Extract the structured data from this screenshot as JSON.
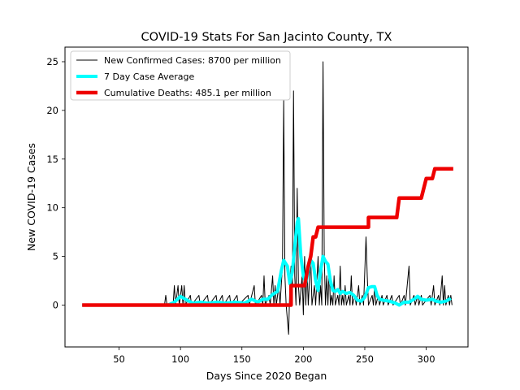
{
  "chart_data": {
    "type": "line",
    "title": "COVID-19 Stats For San Jacinto County, TX",
    "xlabel": "Days Since 2020 Began",
    "ylabel": "New COVID-19 Cases",
    "xlim": [
      6,
      334
    ],
    "ylim": [
      -4.3,
      26.5
    ],
    "xticks": [
      50,
      100,
      150,
      200,
      250,
      300
    ],
    "yticks": [
      0,
      5,
      10,
      15,
      20,
      25
    ],
    "grid": false,
    "legend_position": "top-left",
    "series": [
      {
        "name": "New Confirmed Cases: 8700 per million",
        "color": "#000000",
        "points": [
          [
            20,
            0
          ],
          [
            87,
            0
          ],
          [
            88,
            1
          ],
          [
            89,
            0
          ],
          [
            94,
            0
          ],
          [
            95,
            2
          ],
          [
            96,
            0
          ],
          [
            98,
            2
          ],
          [
            99,
            0
          ],
          [
            101,
            2
          ],
          [
            102,
            0
          ],
          [
            103,
            2
          ],
          [
            104,
            0
          ],
          [
            108,
            1
          ],
          [
            109,
            0
          ],
          [
            115,
            1
          ],
          [
            116,
            0
          ],
          [
            122,
            1
          ],
          [
            123,
            0
          ],
          [
            129,
            1
          ],
          [
            130,
            0
          ],
          [
            134,
            1
          ],
          [
            135,
            0
          ],
          [
            140,
            1
          ],
          [
            141,
            0
          ],
          [
            146,
            1
          ],
          [
            147,
            0
          ],
          [
            155,
            1
          ],
          [
            156,
            0
          ],
          [
            160,
            2
          ],
          [
            161,
            0
          ],
          [
            166,
            1
          ],
          [
            167,
            0
          ],
          [
            168,
            3
          ],
          [
            169,
            0
          ],
          [
            172,
            1
          ],
          [
            173,
            0
          ],
          [
            175,
            3
          ],
          [
            176,
            0
          ],
          [
            177,
            2
          ],
          [
            178,
            0
          ],
          [
            180,
            2
          ],
          [
            181,
            0
          ],
          [
            183,
            4
          ],
          [
            184,
            21
          ],
          [
            185,
            3
          ],
          [
            186,
            0
          ],
          [
            188,
            -3
          ],
          [
            189,
            2
          ],
          [
            190,
            4
          ],
          [
            191,
            0
          ],
          [
            192,
            22
          ],
          [
            193,
            3
          ],
          [
            194,
            0
          ],
          [
            195,
            12
          ],
          [
            196,
            2
          ],
          [
            197,
            0
          ],
          [
            199,
            3
          ],
          [
            200,
            -1
          ],
          [
            201,
            5
          ],
          [
            202,
            0
          ],
          [
            203,
            4
          ],
          [
            204,
            0
          ],
          [
            206,
            5
          ],
          [
            207,
            0
          ],
          [
            209,
            2
          ],
          [
            210,
            0
          ],
          [
            212,
            5
          ],
          [
            213,
            0
          ],
          [
            214,
            2
          ],
          [
            215,
            0
          ],
          [
            216,
            25
          ],
          [
            217,
            5
          ],
          [
            218,
            0
          ],
          [
            219,
            3
          ],
          [
            220,
            0
          ],
          [
            221,
            4
          ],
          [
            222,
            0
          ],
          [
            223,
            1
          ],
          [
            224,
            0
          ],
          [
            225,
            3
          ],
          [
            226,
            0
          ],
          [
            228,
            1
          ],
          [
            229,
            0
          ],
          [
            230,
            4
          ],
          [
            231,
            0
          ],
          [
            232,
            1
          ],
          [
            233,
            0
          ],
          [
            234,
            2
          ],
          [
            235,
            0
          ],
          [
            237,
            1
          ],
          [
            238,
            0
          ],
          [
            239,
            3
          ],
          [
            240,
            0
          ],
          [
            242,
            1
          ],
          [
            243,
            0
          ],
          [
            245,
            2
          ],
          [
            246,
            0
          ],
          [
            248,
            1
          ],
          [
            249,
            0
          ],
          [
            251,
            7
          ],
          [
            252,
            3
          ],
          [
            253,
            0
          ],
          [
            256,
            1
          ],
          [
            257,
            0
          ],
          [
            258,
            2
          ],
          [
            259,
            0
          ],
          [
            261,
            1
          ],
          [
            262,
            0
          ],
          [
            264,
            1
          ],
          [
            265,
            0
          ],
          [
            268,
            1
          ],
          [
            269,
            0
          ],
          [
            272,
            1
          ],
          [
            273,
            0
          ],
          [
            278,
            1
          ],
          [
            279,
            0
          ],
          [
            282,
            1
          ],
          [
            283,
            0
          ],
          [
            286,
            4
          ],
          [
            287,
            0
          ],
          [
            290,
            1
          ],
          [
            291,
            0
          ],
          [
            293,
            1
          ],
          [
            294,
            0
          ],
          [
            296,
            1
          ],
          [
            297,
            0
          ],
          [
            303,
            1
          ],
          [
            304,
            0
          ],
          [
            306,
            2
          ],
          [
            307,
            0
          ],
          [
            310,
            1
          ],
          [
            311,
            0
          ],
          [
            313,
            3
          ],
          [
            314,
            0
          ],
          [
            315,
            2
          ],
          [
            316,
            0
          ],
          [
            318,
            1
          ],
          [
            319,
            0
          ],
          [
            320,
            1
          ],
          [
            321,
            0
          ]
        ]
      },
      {
        "name": "7 Day Case Average",
        "color": "#00ffff",
        "points": [
          [
            20,
            0
          ],
          [
            90,
            0
          ],
          [
            95,
            0.3
          ],
          [
            100,
            0.9
          ],
          [
            104,
            0.6
          ],
          [
            110,
            0.2
          ],
          [
            116,
            0.3
          ],
          [
            122,
            0.2
          ],
          [
            130,
            0.3
          ],
          [
            136,
            0.2
          ],
          [
            145,
            0.3
          ],
          [
            152,
            0.2
          ],
          [
            158,
            0.6
          ],
          [
            163,
            0.3
          ],
          [
            167,
            0.6
          ],
          [
            171,
            0.6
          ],
          [
            175,
            1.1
          ],
          [
            179,
            1.4
          ],
          [
            182,
            3.5
          ],
          [
            184,
            4.6
          ],
          [
            187,
            4
          ],
          [
            189,
            2.2
          ],
          [
            191,
            3.4
          ],
          [
            193,
            6
          ],
          [
            195,
            8.5
          ],
          [
            196,
            8.9
          ],
          [
            198,
            5
          ],
          [
            200,
            3
          ],
          [
            202,
            2.3
          ],
          [
            204,
            3.5
          ],
          [
            206,
            4.6
          ],
          [
            208,
            4.3
          ],
          [
            210,
            2.5
          ],
          [
            212,
            1.5
          ],
          [
            214,
            3.5
          ],
          [
            216,
            5
          ],
          [
            218,
            4.5
          ],
          [
            220,
            4.2
          ],
          [
            222,
            2.5
          ],
          [
            224,
            1.5
          ],
          [
            226,
            1.4
          ],
          [
            228,
            1.6
          ],
          [
            230,
            1.2
          ],
          [
            232,
            1.4
          ],
          [
            235,
            1.2
          ],
          [
            238,
            1.3
          ],
          [
            241,
            1
          ],
          [
            244,
            0.5
          ],
          [
            247,
            0.4
          ],
          [
            250,
            0.8
          ],
          [
            253,
            1.8
          ],
          [
            256,
            1.9
          ],
          [
            258,
            1.9
          ],
          [
            260,
            1
          ],
          [
            262,
            0.6
          ],
          [
            265,
            0.5
          ],
          [
            270,
            0.4
          ],
          [
            275,
            0.2
          ],
          [
            278,
            0
          ],
          [
            282,
            0.3
          ],
          [
            286,
            0.3
          ],
          [
            290,
            0.6
          ],
          [
            293,
            0.9
          ],
          [
            296,
            0.6
          ],
          [
            300,
            0.5
          ],
          [
            305,
            0.6
          ],
          [
            308,
            0.4
          ],
          [
            312,
            0.3
          ],
          [
            316,
            0.4
          ],
          [
            320,
            0.7
          ]
        ]
      },
      {
        "name": "Cumulative Deaths: 485.1 per million",
        "color": "#ee0000",
        "points": [
          [
            20,
            0
          ],
          [
            190,
            0
          ],
          [
            190,
            2
          ],
          [
            201,
            2
          ],
          [
            204,
            4
          ],
          [
            206,
            5
          ],
          [
            208,
            7
          ],
          [
            210,
            7
          ],
          [
            212,
            8
          ],
          [
            253,
            8
          ],
          [
            253,
            9
          ],
          [
            276,
            9
          ],
          [
            278,
            11
          ],
          [
            296,
            11
          ],
          [
            300,
            13
          ],
          [
            305,
            13
          ],
          [
            307,
            14
          ],
          [
            322,
            14
          ]
        ]
      }
    ]
  }
}
